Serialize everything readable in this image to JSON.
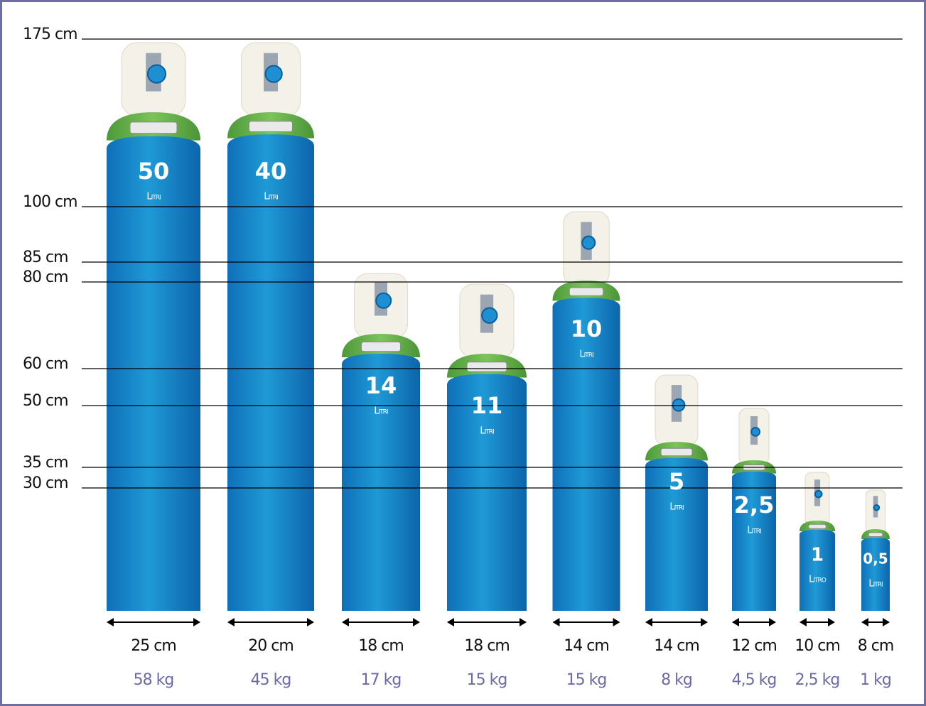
{
  "scale": [
    "175 cm",
    "100 cm",
    "85 cm",
    "80 cm",
    "60 cm",
    "50 cm",
    "35 cm",
    "30 cm"
  ],
  "cylinders": [
    {
      "capacity": "50",
      "unit": "Litri",
      "diameter": "25 cm",
      "weight": "58 kg"
    },
    {
      "capacity": "40",
      "unit": "Litri",
      "diameter": "20 cm",
      "weight": "45 kg"
    },
    {
      "capacity": "14",
      "unit": "Litri",
      "diameter": "18 cm",
      "weight": "17 kg"
    },
    {
      "capacity": "11",
      "unit": "Litri",
      "diameter": "18 cm",
      "weight": "15 kg"
    },
    {
      "capacity": "10",
      "unit": "Litri",
      "diameter": "14 cm",
      "weight": "15 kg"
    },
    {
      "capacity": "5",
      "unit": "Litri",
      "diameter": "14 cm",
      "weight": "8 kg"
    },
    {
      "capacity": "2,5",
      "unit": "Litri",
      "diameter": "12 cm",
      "weight": "4,5 kg"
    },
    {
      "capacity": "1",
      "unit": "Litro",
      "diameter": "10 cm",
      "weight": "2,5 kg"
    },
    {
      "capacity": "0,5",
      "unit": "Litri",
      "diameter": "8 cm",
      "weight": "1 kg"
    }
  ]
}
